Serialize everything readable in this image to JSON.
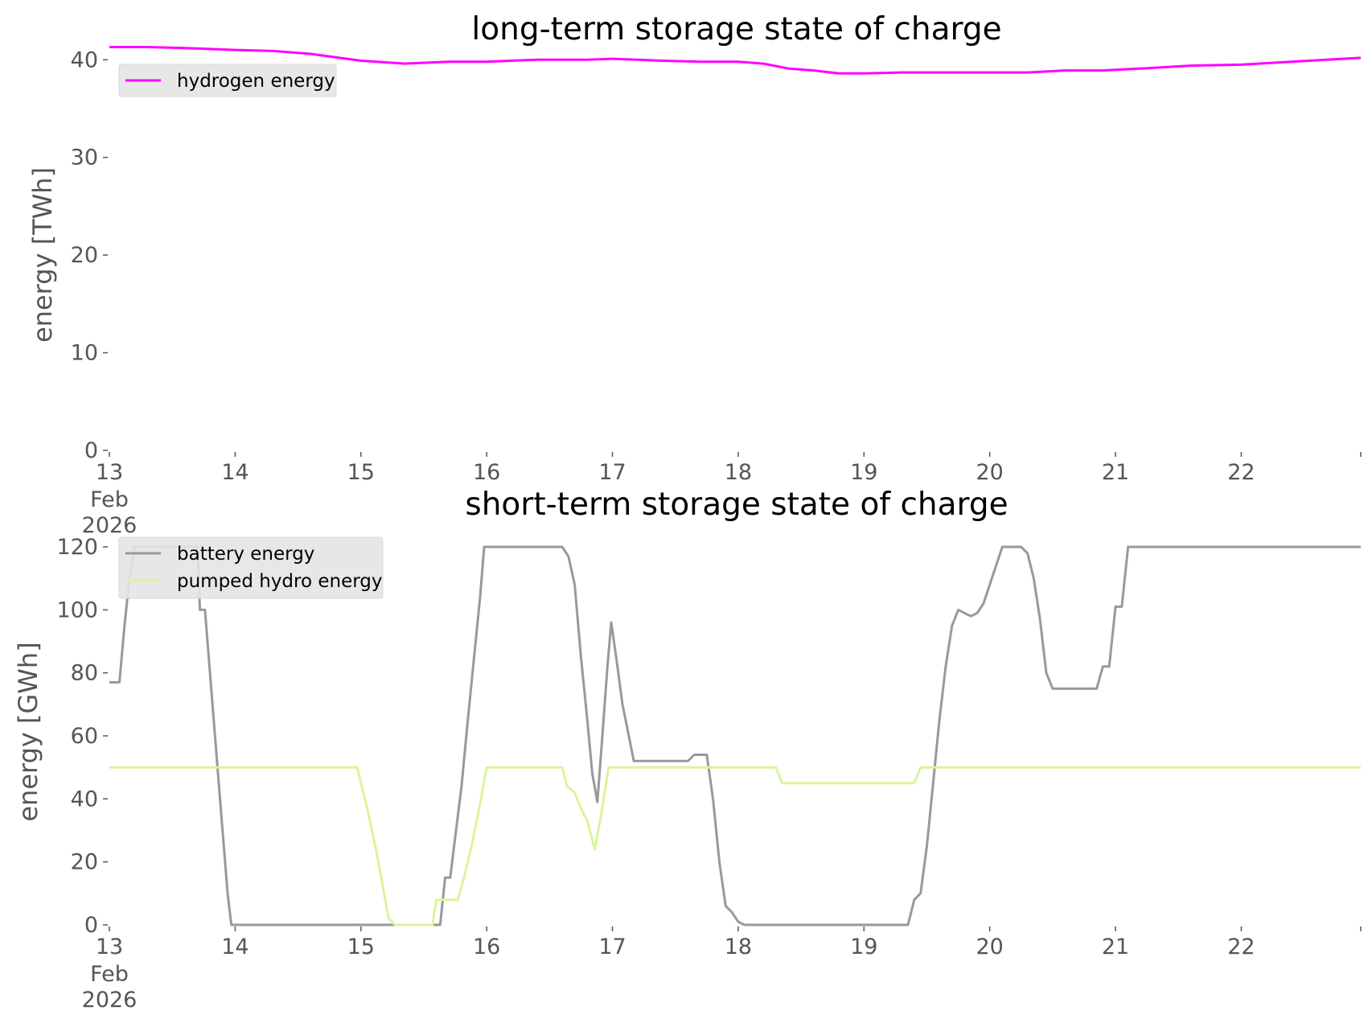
{
  "chart_data": [
    {
      "type": "line",
      "title": "long-term storage state of charge",
      "xlabel": "",
      "ylabel": "energy [TWh]",
      "ylim": [
        0,
        42
      ],
      "yticks": [
        0,
        10,
        20,
        30,
        40
      ],
      "xlim": [
        13,
        22.95
      ],
      "xticks": [
        13,
        14,
        15,
        16,
        17,
        18,
        19,
        20,
        21,
        22
      ],
      "xtick_labels": [
        "13",
        "14",
        "15",
        "16",
        "17",
        "18",
        "19",
        "20",
        "21",
        "22"
      ],
      "first_tick_sublabels": [
        "Feb",
        "2026"
      ],
      "grid": false,
      "legend": "top-left",
      "series": [
        {
          "name": "hydrogen energy",
          "color": "#ff00ff",
          "points": [
            [
              13.0,
              41.3
            ],
            [
              13.3,
              41.3
            ],
            [
              13.6,
              41.2
            ],
            [
              14.0,
              41.0
            ],
            [
              14.3,
              40.9
            ],
            [
              14.6,
              40.6
            ],
            [
              15.0,
              39.9
            ],
            [
              15.35,
              39.6
            ],
            [
              15.7,
              39.8
            ],
            [
              16.0,
              39.8
            ],
            [
              16.4,
              40.0
            ],
            [
              16.8,
              40.0
            ],
            [
              17.0,
              40.1
            ],
            [
              17.2,
              40.0
            ],
            [
              17.4,
              39.9
            ],
            [
              17.7,
              39.8
            ],
            [
              18.0,
              39.8
            ],
            [
              18.2,
              39.6
            ],
            [
              18.4,
              39.1
            ],
            [
              18.6,
              38.9
            ],
            [
              18.8,
              38.6
            ],
            [
              19.0,
              38.6
            ],
            [
              19.3,
              38.7
            ],
            [
              19.6,
              38.7
            ],
            [
              20.0,
              38.7
            ],
            [
              20.3,
              38.7
            ],
            [
              20.6,
              38.9
            ],
            [
              20.9,
              38.9
            ],
            [
              21.2,
              39.1
            ],
            [
              21.6,
              39.4
            ],
            [
              22.0,
              39.5
            ],
            [
              22.4,
              39.8
            ],
            [
              22.95,
              40.2
            ]
          ]
        }
      ]
    },
    {
      "type": "line",
      "title": "short-term storage state of charge",
      "xlabel": "",
      "ylabel": "energy [GWh]",
      "ylim": [
        0,
        120
      ],
      "yticks": [
        0,
        20,
        40,
        60,
        80,
        100,
        120
      ],
      "xlim": [
        13,
        22.95
      ],
      "xticks": [
        13,
        14,
        15,
        16,
        17,
        18,
        19,
        20,
        21,
        22
      ],
      "xtick_labels": [
        "13",
        "14",
        "15",
        "16",
        "17",
        "18",
        "19",
        "20",
        "21",
        "22"
      ],
      "first_tick_sublabels": [
        "Feb",
        "2026"
      ],
      "grid": false,
      "legend": "top-left",
      "series": [
        {
          "name": "battery energy",
          "color": "#999999",
          "points": [
            [
              13.0,
              77
            ],
            [
              13.08,
              77
            ],
            [
              13.12,
              95
            ],
            [
              13.16,
              110
            ],
            [
              13.2,
              120
            ],
            [
              13.7,
              120
            ],
            [
              13.72,
              100
            ],
            [
              13.76,
              100
            ],
            [
              13.8,
              80
            ],
            [
              13.85,
              55
            ],
            [
              13.9,
              30
            ],
            [
              13.94,
              10
            ],
            [
              13.97,
              0
            ],
            [
              15.6,
              0
            ],
            [
              15.63,
              0
            ],
            [
              15.67,
              15
            ],
            [
              15.71,
              15
            ],
            [
              15.75,
              28
            ],
            [
              15.8,
              44
            ],
            [
              15.85,
              65
            ],
            [
              15.9,
              85
            ],
            [
              15.95,
              105
            ],
            [
              15.98,
              120
            ],
            [
              16.6,
              120
            ],
            [
              16.65,
              117
            ],
            [
              16.7,
              108
            ],
            [
              16.75,
              85
            ],
            [
              16.8,
              65
            ],
            [
              16.84,
              48
            ],
            [
              16.88,
              39
            ],
            [
              16.92,
              60
            ],
            [
              16.96,
              82
            ],
            [
              16.99,
              96
            ],
            [
              17.03,
              85
            ],
            [
              17.08,
              70
            ],
            [
              17.13,
              60
            ],
            [
              17.17,
              52
            ],
            [
              17.6,
              52
            ],
            [
              17.65,
              54
            ],
            [
              17.75,
              54
            ],
            [
              17.8,
              40
            ],
            [
              17.85,
              20
            ],
            [
              17.9,
              6
            ],
            [
              17.95,
              4
            ],
            [
              18.0,
              1
            ],
            [
              18.05,
              0
            ],
            [
              19.35,
              0
            ],
            [
              19.4,
              8
            ],
            [
              19.45,
              10
            ],
            [
              19.5,
              25
            ],
            [
              19.55,
              45
            ],
            [
              19.6,
              65
            ],
            [
              19.65,
              82
            ],
            [
              19.7,
              95
            ],
            [
              19.75,
              100
            ],
            [
              19.8,
              99
            ],
            [
              19.85,
              98
            ],
            [
              19.9,
              99
            ],
            [
              19.95,
              102
            ],
            [
              20.0,
              108
            ],
            [
              20.05,
              114
            ],
            [
              20.1,
              120
            ],
            [
              20.25,
              120
            ],
            [
              20.3,
              118
            ],
            [
              20.35,
              110
            ],
            [
              20.4,
              97
            ],
            [
              20.45,
              80
            ],
            [
              20.5,
              75
            ],
            [
              20.85,
              75
            ],
            [
              20.9,
              82
            ],
            [
              20.95,
              82
            ],
            [
              21.0,
              101
            ],
            [
              21.05,
              101
            ],
            [
              21.1,
              120
            ],
            [
              22.95,
              120
            ]
          ]
        },
        {
          "name": "pumped hydro energy",
          "color": "#d9f59b",
          "points": [
            [
              13.0,
              50
            ],
            [
              14.97,
              50
            ],
            [
              15.05,
              37
            ],
            [
              15.12,
              24
            ],
            [
              15.18,
              11
            ],
            [
              15.22,
              2
            ],
            [
              15.27,
              0
            ],
            [
              15.57,
              0
            ],
            [
              15.6,
              8
            ],
            [
              15.77,
              8
            ],
            [
              15.82,
              15
            ],
            [
              15.88,
              25
            ],
            [
              15.94,
              37
            ],
            [
              16.0,
              50
            ],
            [
              16.6,
              50
            ],
            [
              16.64,
              44
            ],
            [
              16.7,
              42
            ],
            [
              16.75,
              37
            ],
            [
              16.8,
              33
            ],
            [
              16.86,
              24
            ],
            [
              16.91,
              35
            ],
            [
              16.97,
              50
            ],
            [
              18.3,
              50
            ],
            [
              18.35,
              45
            ],
            [
              19.4,
              45
            ],
            [
              19.45,
              50
            ],
            [
              22.95,
              50
            ]
          ]
        }
      ]
    }
  ]
}
